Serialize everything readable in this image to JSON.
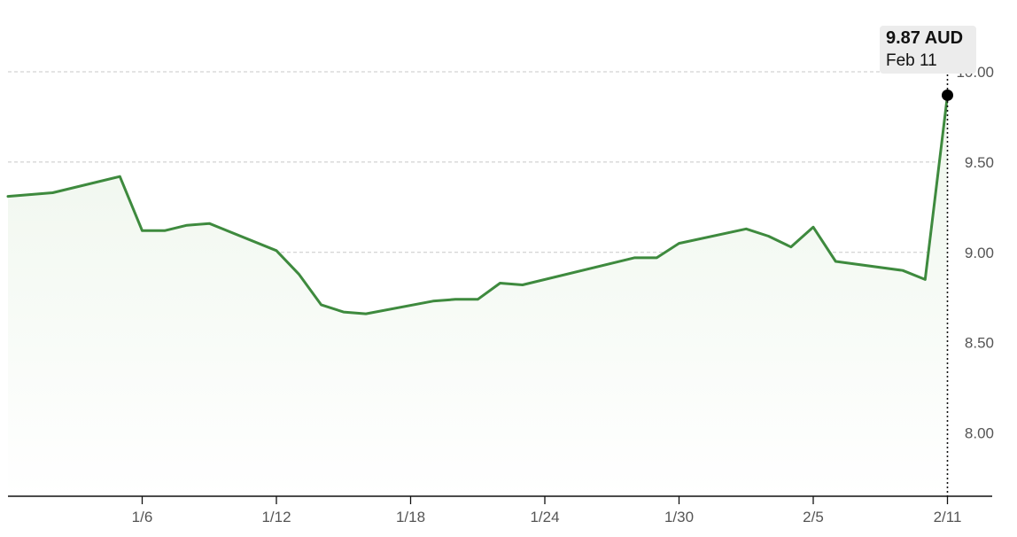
{
  "colors": {
    "line": "#3e8a3e",
    "fill": "#eef6ec",
    "grid": "#c8c8c8",
    "axis": "#111111",
    "marker": "#000000"
  },
  "tooltip": {
    "value": "9.87 AUD",
    "date": "Feb 11"
  },
  "chart_data": {
    "type": "area",
    "title": "",
    "xlabel": "",
    "ylabel": "",
    "unit": "AUD",
    "ylim": [
      7.65,
      10.25
    ],
    "xlim": [
      "2025-12-31",
      "2026-02-13"
    ],
    "y_ticks": [
      8.0,
      8.5,
      9.0,
      9.5,
      10.0
    ],
    "y_tick_labels": [
      "8.00",
      "8.50",
      "9.00",
      "9.50",
      "10.00"
    ],
    "x_ticks": [
      "2026-01-06",
      "2026-01-12",
      "2026-01-18",
      "2026-01-24",
      "2026-01-30",
      "2026-02-05",
      "2026-02-11"
    ],
    "x_tick_labels": [
      "1/6",
      "1/12",
      "1/18",
      "1/24",
      "1/30",
      "2/5",
      "2/11"
    ],
    "grid": true,
    "highlight": {
      "x": "2026-02-11",
      "y": 9.87
    },
    "series": [
      {
        "points": [
          [
            "2025-12-31",
            9.31
          ],
          [
            "2026-01-02",
            9.33
          ],
          [
            "2026-01-05",
            9.42
          ],
          [
            "2026-01-06",
            9.12
          ],
          [
            "2026-01-07",
            9.12
          ],
          [
            "2026-01-08",
            9.15
          ],
          [
            "2026-01-09",
            9.16
          ],
          [
            "2026-01-12",
            9.01
          ],
          [
            "2026-01-13",
            8.88
          ],
          [
            "2026-01-14",
            8.71
          ],
          [
            "2026-01-15",
            8.67
          ],
          [
            "2026-01-16",
            8.66
          ],
          [
            "2026-01-19",
            8.73
          ],
          [
            "2026-01-20",
            8.74
          ],
          [
            "2026-01-21",
            8.74
          ],
          [
            "2026-01-22",
            8.83
          ],
          [
            "2026-01-23",
            8.82
          ],
          [
            "2026-01-28",
            8.97
          ],
          [
            "2026-01-29",
            8.97
          ],
          [
            "2026-01-30",
            9.05
          ],
          [
            "2026-02-02",
            9.13
          ],
          [
            "2026-02-03",
            9.09
          ],
          [
            "2026-02-04",
            9.03
          ],
          [
            "2026-02-05",
            9.14
          ],
          [
            "2026-02-06",
            8.95
          ],
          [
            "2026-02-09",
            8.9
          ],
          [
            "2026-02-10",
            8.85
          ],
          [
            "2026-02-11",
            9.87
          ]
        ]
      }
    ]
  }
}
